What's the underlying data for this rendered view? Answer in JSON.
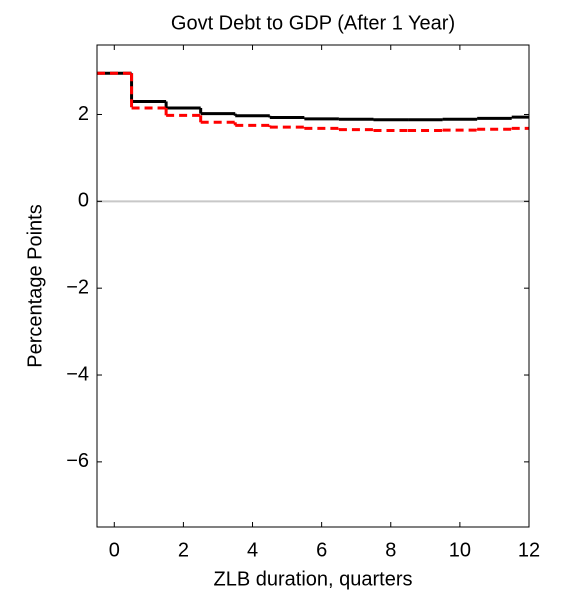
{
  "chart_data": {
    "type": "step",
    "title": "Govt Debt to GDP (After 1 Year)",
    "x_label": "ZLB duration, quarters",
    "y_label": "Percentage Points",
    "x": [
      0,
      1,
      2,
      3,
      4,
      5,
      6,
      7,
      8,
      9,
      10,
      11,
      12
    ],
    "series": [
      {
        "color": "#000000",
        "dash": false,
        "values": [
          2.95,
          2.3,
          2.15,
          2.02,
          1.97,
          1.93,
          1.9,
          1.89,
          1.88,
          1.88,
          1.89,
          1.91,
          1.94
        ]
      },
      {
        "color": "#ff0000",
        "dash": true,
        "values": [
          2.95,
          2.15,
          1.98,
          1.82,
          1.75,
          1.71,
          1.68,
          1.65,
          1.63,
          1.63,
          1.64,
          1.66,
          1.68
        ]
      }
    ],
    "xlim": [
      -0.5,
      12
    ],
    "ylim": [
      -7.5,
      3.6
    ],
    "xticks": [
      0,
      2,
      4,
      6,
      8,
      10,
      12
    ],
    "yticks": [
      {
        "value": -6,
        "label": "−6"
      },
      {
        "value": -4,
        "label": "−4"
      },
      {
        "value": -2,
        "label": "−2"
      },
      0,
      2
    ],
    "reference_line": {
      "value": 0,
      "color": "#c8c8c8"
    }
  }
}
